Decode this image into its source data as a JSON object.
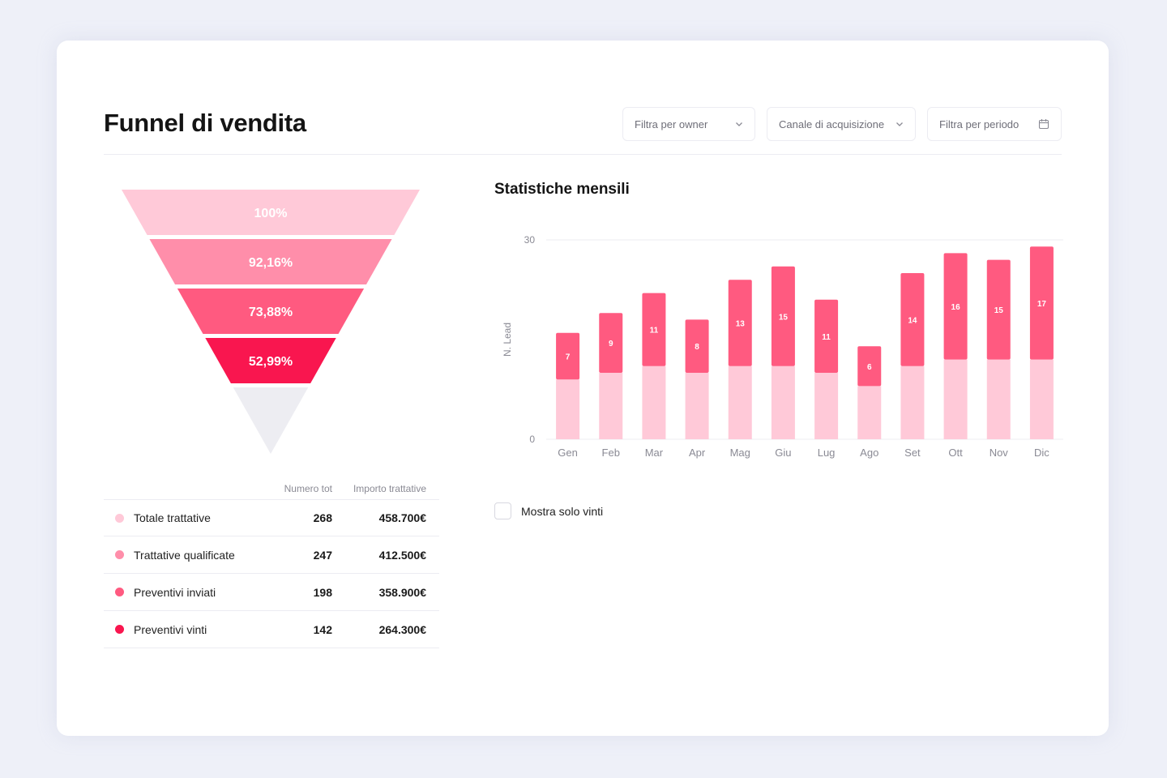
{
  "header": {
    "title": "Funnel di vendita",
    "filters": [
      {
        "label": "Filtra per owner",
        "icon": "chevron-down-icon"
      },
      {
        "label": "Canale di acquisizione",
        "icon": "chevron-down-icon"
      },
      {
        "label": "Filtra per periodo",
        "icon": "calendar-icon"
      }
    ]
  },
  "funnel": {
    "levels": [
      {
        "percent": "100%",
        "color": "#ffc9d8"
      },
      {
        "percent": "92,16%",
        "color": "#ff8eaa"
      },
      {
        "percent": "73,88%",
        "color": "#ff5a80"
      },
      {
        "percent": "52,99%",
        "color": "#f9164f"
      }
    ],
    "remainder_color": "#ededf2"
  },
  "table": {
    "headers": {
      "count": "Numero tot",
      "amount": "Importo trattative"
    },
    "rows": [
      {
        "name": "Totale trattative",
        "count": "268",
        "amount": "458.700€",
        "color": "#ffc9d8"
      },
      {
        "name": "Trattative qualificate",
        "count": "247",
        "amount": "412.500€",
        "color": "#ff8eaa"
      },
      {
        "name": "Preventivi inviati",
        "count": "198",
        "amount": "358.900€",
        "color": "#ff5a80"
      },
      {
        "name": "Preventivi vinti",
        "count": "142",
        "amount": "264.300€",
        "color": "#f9164f"
      }
    ]
  },
  "stats": {
    "title": "Statistiche mensili",
    "checkbox_label": "Mostra solo vinti",
    "checkbox_checked": false
  },
  "chart_data": {
    "type": "bar",
    "stacked": true,
    "ylabel": "N. Lead",
    "ylim": [
      0,
      30
    ],
    "yticks": [
      "0",
      "30"
    ],
    "categories": [
      "Gen",
      "Feb",
      "Mar",
      "Apr",
      "Mag",
      "Giu",
      "Lug",
      "Ago",
      "Set",
      "Ott",
      "Nov",
      "Dic"
    ],
    "series": [
      {
        "values": [
          9,
          10,
          11,
          10,
          11,
          11,
          10,
          8,
          11,
          12,
          12,
          12
        ],
        "color": "#ffc9d8"
      },
      {
        "values": [
          7,
          9,
          11,
          8,
          13,
          15,
          11,
          6,
          14,
          16,
          15,
          17
        ],
        "color": "#ff5a80"
      }
    ],
    "grid": true
  }
}
